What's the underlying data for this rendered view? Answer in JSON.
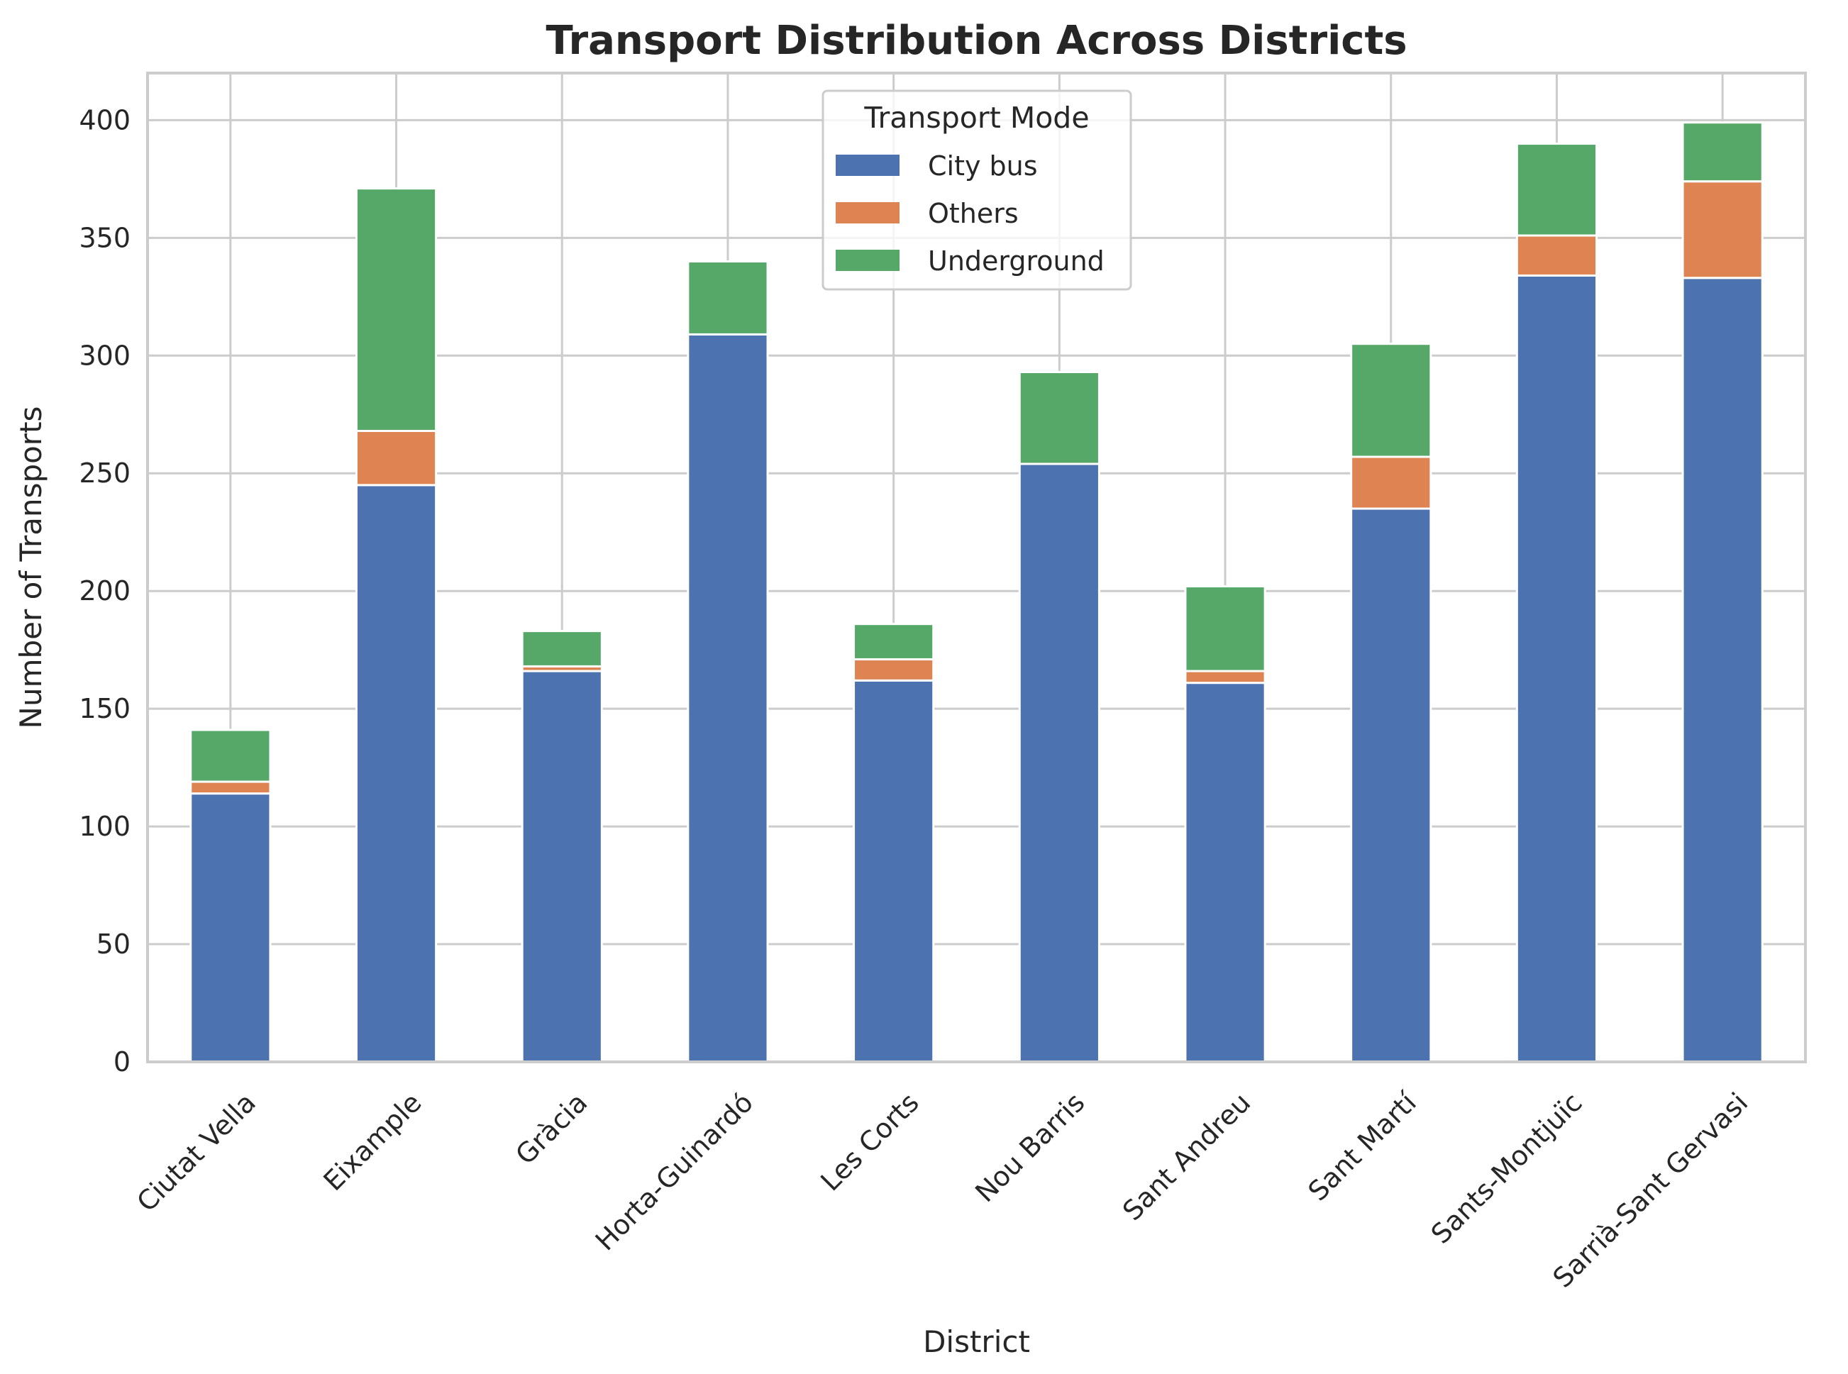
{
  "chart_data": {
    "type": "bar",
    "stacked": true,
    "title": "Transport Distribution Across Districts",
    "xlabel": "District",
    "ylabel": "Number of Transports",
    "ylim": [
      0,
      420
    ],
    "yticks": [
      0,
      50,
      100,
      150,
      200,
      250,
      300,
      350,
      400
    ],
    "grid": true,
    "legend_title": "Transport Mode",
    "legend_position": "top-center",
    "categories": [
      "Ciutat Vella",
      "Eixample",
      "Gràcia",
      "Horta-Guinardó",
      "Les Corts",
      "Nou Barris",
      "Sant Andreu",
      "Sant Martí",
      "Sants-Montjuïc",
      "Sarrià-Sant Gervasi"
    ],
    "series": [
      {
        "name": "City bus",
        "color": "#4c72b0",
        "values": [
          114,
          245,
          166,
          309,
          162,
          254,
          161,
          235,
          334,
          333
        ]
      },
      {
        "name": "Others",
        "color": "#dd8452",
        "values": [
          5,
          23,
          2,
          0,
          9,
          0,
          5,
          22,
          17,
          41
        ]
      },
      {
        "name": "Underground",
        "color": "#55a868",
        "values": [
          22,
          103,
          15,
          31,
          15,
          39,
          36,
          48,
          39,
          25
        ]
      }
    ]
  }
}
